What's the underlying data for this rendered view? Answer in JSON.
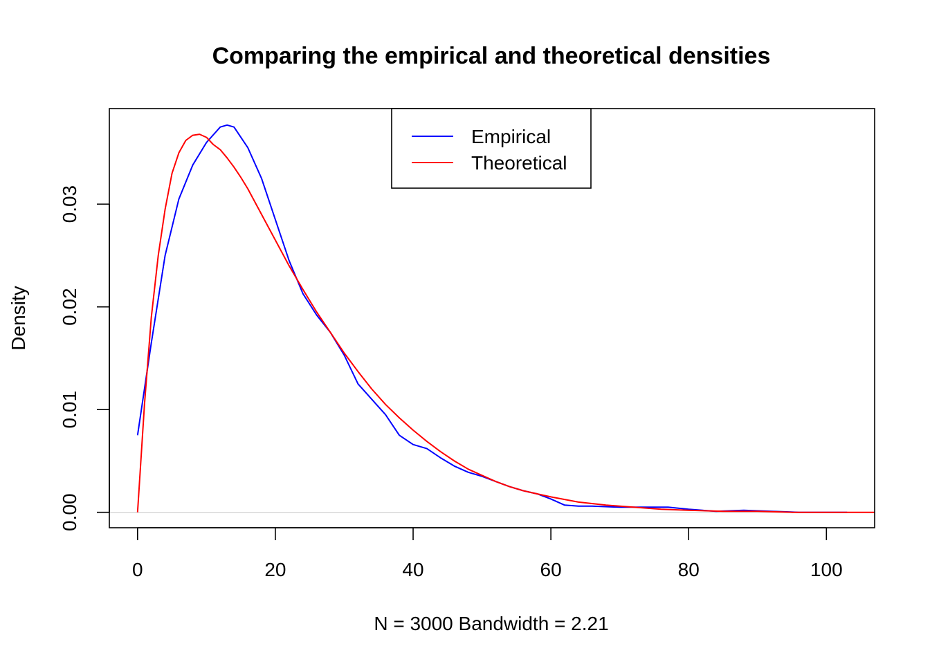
{
  "chart_data": {
    "type": "line",
    "title": "Comparing the empirical and theoretical densities",
    "xlabel": "N = 3000   Bandwidth = 2.21",
    "ylabel": "Density",
    "xlim": [
      -4.1,
      107
    ],
    "ylim": [
      -0.0015,
      0.0393
    ],
    "x_ticks": [
      0,
      20,
      40,
      60,
      80,
      100
    ],
    "x_tick_labels": [
      "0",
      "20",
      "40",
      "60",
      "80",
      "100"
    ],
    "y_ticks": [
      0.0,
      0.01,
      0.02,
      0.03
    ],
    "y_tick_labels": [
      "0.00",
      "0.01",
      "0.02",
      "0.03"
    ],
    "grid": false,
    "zero_line": true,
    "legend_position": "top-center",
    "series": [
      {
        "name": "Empirical",
        "color": "#0000FF",
        "x": [
          0,
          2,
          4,
          6,
          8,
          10,
          12,
          13,
          14,
          16,
          18,
          20,
          22,
          24,
          26,
          28,
          30,
          32,
          34,
          36,
          38,
          40,
          42,
          44,
          46,
          48,
          50,
          52,
          54,
          56,
          58,
          60,
          62,
          64,
          66,
          70,
          74,
          77,
          80,
          84,
          88,
          92,
          96,
          100,
          103
        ],
        "y": [
          0.0075,
          0.0165,
          0.025,
          0.0305,
          0.0338,
          0.036,
          0.0375,
          0.0377,
          0.0375,
          0.0355,
          0.0325,
          0.0285,
          0.0245,
          0.0213,
          0.0192,
          0.0175,
          0.0153,
          0.0125,
          0.011,
          0.0095,
          0.0075,
          0.0066,
          0.0062,
          0.0053,
          0.0045,
          0.0039,
          0.0035,
          0.003,
          0.0025,
          0.0021,
          0.0018,
          0.0013,
          0.0007,
          0.0006,
          0.0006,
          0.0005,
          0.0005,
          0.0005,
          0.0003,
          0.0001,
          0.0002,
          0.0001,
          0.0,
          0.0,
          0.0
        ]
      },
      {
        "name": "Theoretical",
        "color": "#FF0000",
        "x": [
          0,
          1,
          2,
          3,
          4,
          5,
          6,
          7,
          8,
          9,
          10,
          11,
          12,
          13,
          14,
          15,
          16,
          18,
          20,
          22,
          24,
          26,
          28,
          30,
          32,
          34,
          36,
          38,
          40,
          42,
          44,
          46,
          48,
          50,
          52,
          54,
          56,
          58,
          60,
          64,
          68,
          72,
          76,
          80,
          85,
          90,
          95,
          100,
          107
        ],
        "y": [
          0.0,
          0.0105,
          0.019,
          0.025,
          0.0295,
          0.033,
          0.035,
          0.0362,
          0.0367,
          0.0368,
          0.0365,
          0.0358,
          0.0353,
          0.0345,
          0.0336,
          0.0326,
          0.0315,
          0.029,
          0.0265,
          0.024,
          0.0217,
          0.0195,
          0.0175,
          0.0155,
          0.0137,
          0.012,
          0.0105,
          0.0092,
          0.008,
          0.0069,
          0.0059,
          0.005,
          0.0042,
          0.0036,
          0.003,
          0.0025,
          0.0021,
          0.0018,
          0.0015,
          0.001,
          0.0007,
          0.0005,
          0.0003,
          0.0002,
          0.0001,
          0.0001,
          0.0,
          0.0,
          0.0
        ]
      }
    ]
  }
}
